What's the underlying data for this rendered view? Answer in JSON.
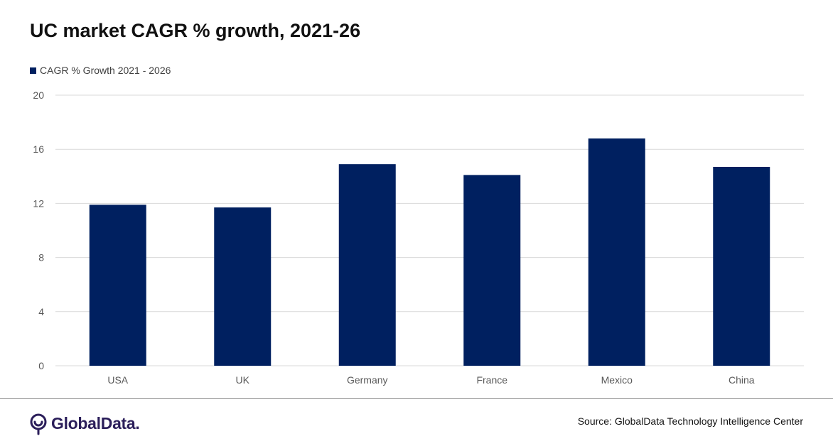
{
  "colors": {
    "bar": "#002060",
    "gridline": "#d9d9d9",
    "axis_text": "#595959",
    "brand": "#2b1e5a"
  },
  "footer": {
    "logo_text": "GlobalData.",
    "logo_icon": "globaldata-logo-icon",
    "source": "Source:  GlobalData Technology Intelligence Center"
  },
  "chart_data": {
    "type": "bar",
    "title": "UC market CAGR % growth, 2021-26",
    "categories": [
      "USA",
      "UK",
      "Germany",
      "France",
      "Mexico",
      "China"
    ],
    "series": [
      {
        "name": "CAGR % Growth 2021 - 2026",
        "values": [
          11.9,
          11.7,
          14.9,
          14.1,
          16.8,
          14.7
        ]
      }
    ],
    "ylim": [
      0,
      20
    ],
    "yticks": [
      0,
      4,
      8,
      12,
      16,
      20
    ],
    "xlabel": "",
    "ylabel": "",
    "grid": true,
    "legend_position": "top-left"
  }
}
